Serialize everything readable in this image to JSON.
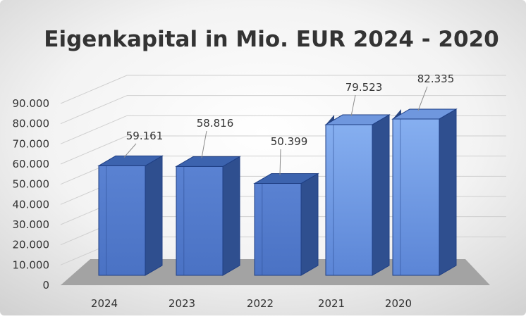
{
  "chart_data": {
    "type": "bar",
    "title": "Eigenkapital in Mio. EUR 2024 - 2020",
    "xlabel": "",
    "ylabel": "",
    "categories": [
      "2024",
      "2023",
      "2022",
      "2021",
      "2020"
    ],
    "values": [
      59161,
      58816,
      50399,
      79523,
      82335
    ],
    "data_labels": [
      "59.161",
      "58.816",
      "50.399",
      "79.523",
      "82.335"
    ],
    "ylim": [
      0,
      90000
    ],
    "y_ticks": [
      0,
      10000,
      20000,
      30000,
      40000,
      50000,
      60000,
      70000,
      80000,
      90000
    ],
    "y_tick_labels": [
      "0",
      "10.000",
      "20.000",
      "30.000",
      "40.000",
      "50.000",
      "60.000",
      "70.000",
      "80.000",
      "90.000"
    ],
    "grid": true,
    "legend": "none",
    "style": "3d-column",
    "colors": {
      "bar_front": "#4f77c9",
      "bar_front_highlight": "#7ba3ea",
      "bar_side": "#2f4f8f",
      "bar_top": "#3c63ae",
      "bar_outline": "#1f3f84",
      "floor": "#a3a3a3",
      "gridline": "#cfcfcf",
      "title": "#333333",
      "axis_text": "#333333",
      "leader_line": "#8c8c8c"
    }
  }
}
